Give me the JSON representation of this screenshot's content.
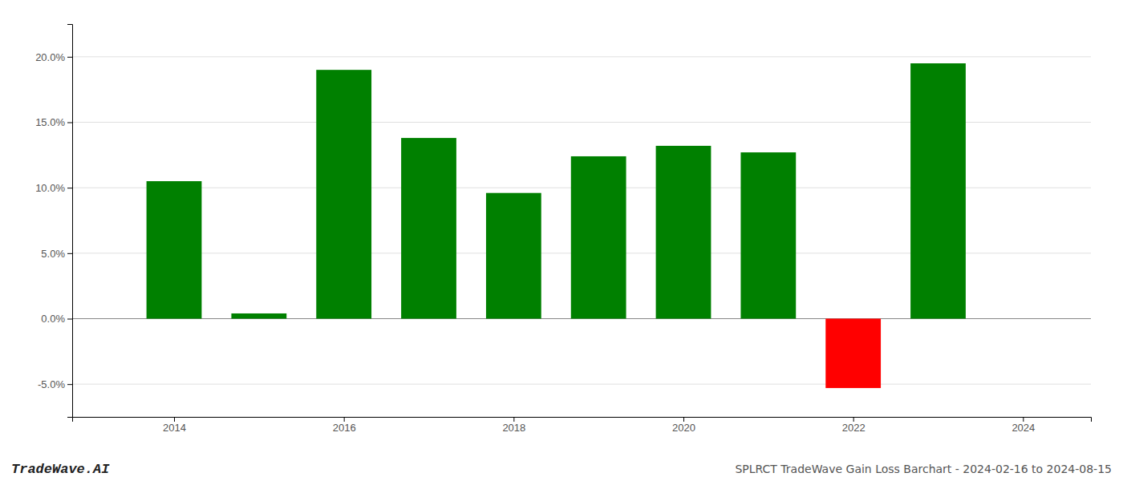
{
  "chart_data": {
    "type": "bar",
    "x": [
      2014,
      2015,
      2016,
      2017,
      2018,
      2019,
      2020,
      2021,
      2022,
      2023
    ],
    "values": [
      0.105,
      0.004,
      0.19,
      0.138,
      0.096,
      0.124,
      0.132,
      0.127,
      -0.053,
      0.195
    ],
    "colors": [
      "#008000",
      "#008000",
      "#008000",
      "#008000",
      "#008000",
      "#008000",
      "#008000",
      "#008000",
      "#ff0000",
      "#008000"
    ],
    "ylim": [
      -0.075,
      0.225
    ],
    "yticks": [
      {
        "value": -0.05,
        "label": "-5.0%"
      },
      {
        "value": 0.0,
        "label": "0.0%"
      },
      {
        "value": 0.05,
        "label": "5.0%"
      },
      {
        "value": 0.1,
        "label": "10.0%"
      },
      {
        "value": 0.15,
        "label": "15.0%"
      },
      {
        "value": 0.2,
        "label": "20.0%"
      }
    ],
    "xlim": [
      2012.8,
      2024.8
    ],
    "xticks": [
      2014,
      2016,
      2018,
      2020,
      2022,
      2024
    ],
    "grid": true,
    "annotations": [
      "TradeWave.AI",
      "SPLRCT TradeWave Gain Loss Barchart - 2024-02-16 to 2024-08-15"
    ]
  }
}
